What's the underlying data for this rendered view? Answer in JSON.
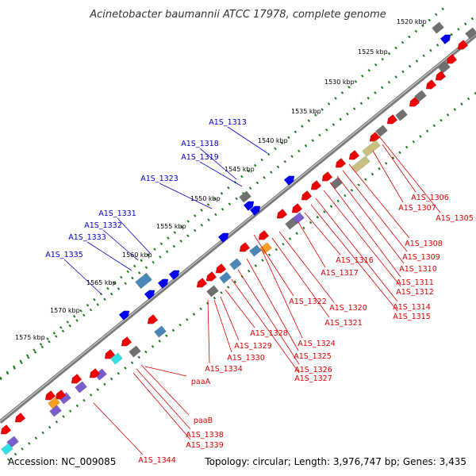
{
  "title": "Acinetobacter baumannii ATCC 17978, complete genome",
  "footer": {
    "accession": "Accession: NC_009085",
    "topology": "Topology: circular; Length: 3,976,747 bp; Genes: 3,435"
  },
  "colors": {
    "backbone": "#8c8c8c",
    "tick": "#1f7a1f",
    "forward_label": "#0000cc",
    "reverse_label": "#dd0000",
    "cds_forward": "#0000ee",
    "cds_reverse": "#ee0000",
    "gray": "#707070",
    "steel": "#4a86b8",
    "olive": "#c8c080",
    "cyan": "#33e0e6",
    "purple": "#7a5ccc",
    "orange": "#f5a020"
  },
  "scale_labels": [
    "1520 kbp",
    "1525 kbp",
    "1530 kbp",
    "1535 kbp",
    "1540 kbp",
    "1545 kbp",
    "1550 kbp",
    "1555 kbp",
    "1560 kbp",
    "1565 kbp",
    "1570 kbp",
    "1575 kbp"
  ],
  "forward_genes": [
    "A1S_1313",
    "A1S_1318",
    "A1S_1319",
    "A1S_1323",
    "A1S_1331",
    "A1S_1332",
    "A1S_1333",
    "A1S_1335"
  ],
  "reverse_genes": [
    "A1S_1305",
    "A1S_1306",
    "A1S_1307",
    "A1S_1308",
    "A1S_1309",
    "A1S_1310",
    "A1S_1311",
    "A1S_1312",
    "A1S_1314",
    "A1S_1315",
    "A1S_1316",
    "A1S_1317",
    "A1S_1320",
    "A1S_1321",
    "A1S_1322",
    "A1S_1324",
    "A1S_1325",
    "A1S_1326",
    "A1S_1327",
    "A1S_1328",
    "A1S_1329",
    "A1S_1330",
    "A1S_1334",
    "paaA",
    "paaB",
    "A1S_1338",
    "A1S_1339",
    "A1S_1344"
  ]
}
